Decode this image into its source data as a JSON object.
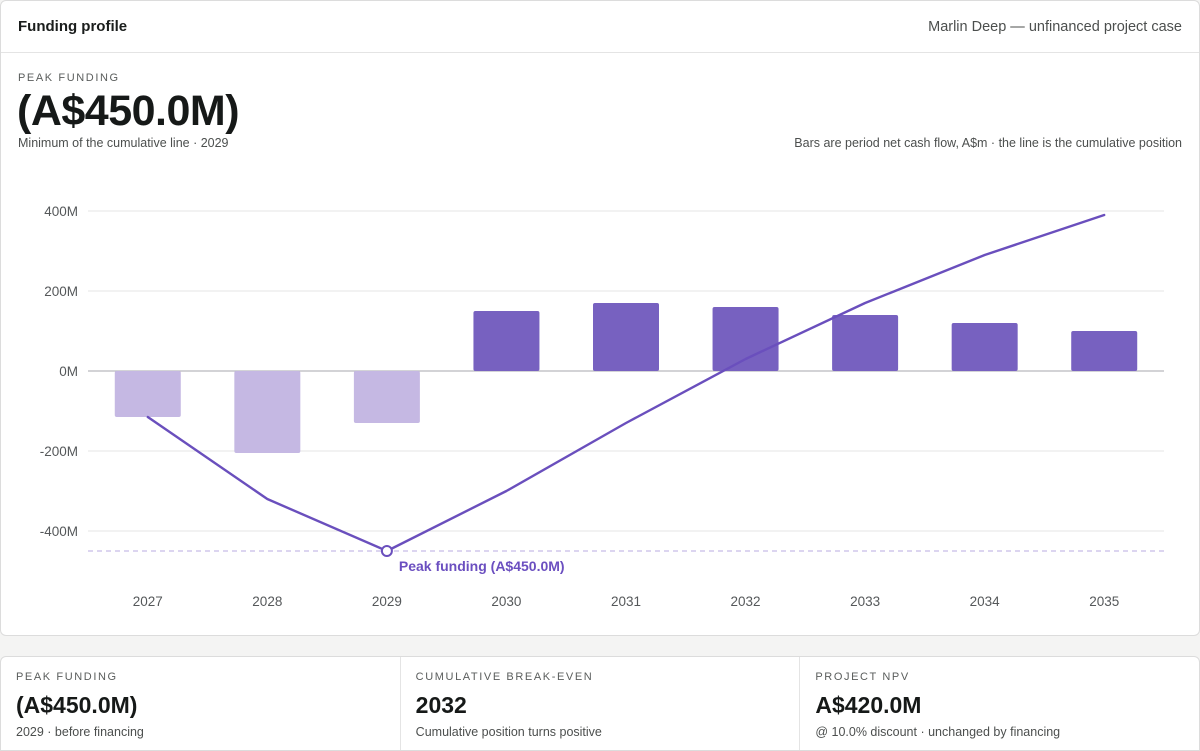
{
  "header": {
    "title": "Funding profile",
    "subtitle": "Marlin Deep — unfinanced project case"
  },
  "kpi": {
    "label": "PEAK FUNDING",
    "value": "(A$450.0M)",
    "note": "Minimum of the cumulative line · 2029"
  },
  "chart_caption": "Bars are period net cash flow, A$m · the line is the cumulative position",
  "colors": {
    "bar_positive": "#7761c0",
    "bar_negative": "#c5b8e3",
    "line": "#6a4fbd",
    "grid": "#e6e6e6",
    "zero_line": "#b9b9bd",
    "peak_dash": "#c6bce6"
  },
  "chart_data": {
    "type": "bar",
    "categories": [
      "2027",
      "2028",
      "2029",
      "2030",
      "2031",
      "2032",
      "2033",
      "2034",
      "2035"
    ],
    "series": [
      {
        "type": "bar",
        "values": [
          -115,
          -205,
          -130,
          150,
          170,
          160,
          140,
          120,
          100
        ]
      },
      {
        "type": "line",
        "values": [
          -115,
          -320,
          -450,
          -300,
          -130,
          30,
          170,
          290,
          390
        ]
      }
    ],
    "y_ticks": [
      400,
      200,
      0,
      -200,
      -400
    ],
    "y_tick_labels": [
      "400M",
      "200M",
      "0M",
      "-200M",
      "-400M"
    ],
    "ylim": [
      -450,
      400
    ],
    "grid": true,
    "annotation": {
      "category": "2029",
      "value": -450,
      "label": "Peak funding (A$450.0M)"
    }
  },
  "stats": [
    {
      "label": "PEAK FUNDING",
      "value": "(A$450.0M)",
      "note": "2029 · before financing"
    },
    {
      "label": "CUMULATIVE BREAK-EVEN",
      "value": "2032",
      "note": "Cumulative position turns positive"
    },
    {
      "label": "PROJECT NPV",
      "value": "A$420.0M",
      "note": "@ 10.0% discount · unchanged by financing"
    }
  ]
}
